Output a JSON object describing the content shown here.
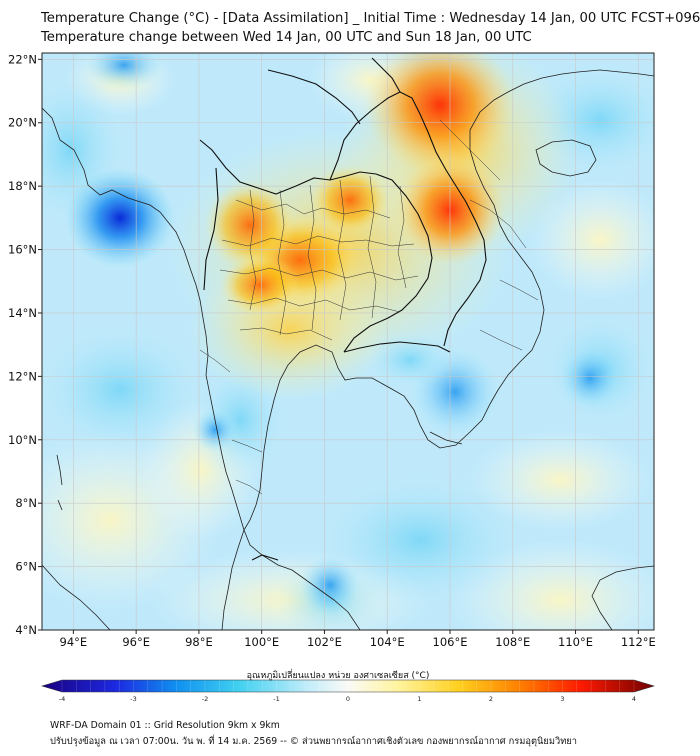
{
  "title": {
    "line1": "Temperature Change (°C) - [Data Assimilation] _ Initial Time : Wednesday 14 Jan, 00 UTC FCST+096",
    "line2": "Temperature change between Wed 14 Jan, 00 UTC and Sun 18 Jan, 00 UTC"
  },
  "map": {
    "lon_labels": [
      "94°E",
      "96°E",
      "98°E",
      "100°E",
      "102°E",
      "104°E",
      "106°E",
      "108°E",
      "110°E",
      "112°E"
    ],
    "lat_labels": [
      "22°N",
      "20°N",
      "18°N",
      "16°N",
      "14°N",
      "12°N",
      "10°N",
      "8°N",
      "6°N",
      "4°N"
    ],
    "lon_range": [
      93,
      112.5
    ],
    "lat_range": [
      4,
      22.2
    ],
    "hot_spots": [
      {
        "lon": 105.8,
        "lat": 20.5,
        "value": 3.1
      },
      {
        "lon": 106.2,
        "lat": 17.0,
        "value": 3.0
      },
      {
        "lon": 101.0,
        "lat": 15.6,
        "value": 2.6
      },
      {
        "lon": 99.6,
        "lat": 16.6,
        "value": 2.5
      },
      {
        "lon": 100.0,
        "lat": 14.7,
        "value": 2.2
      }
    ],
    "cold_spots": [
      {
        "lon": 95.5,
        "lat": 17.0,
        "value": -3.3
      },
      {
        "lon": 105.2,
        "lat": 11.5,
        "value": -2.4
      },
      {
        "lon": 95.8,
        "lat": 21.6,
        "value": -2.0
      },
      {
        "lon": 109.5,
        "lat": 11.6,
        "value": -1.2
      }
    ]
  },
  "colorbar": {
    "label": "อุณหภูมิเปลี่ยนแปลง หน่วย องศาเซลเซียส (°C)",
    "ticks": [
      "-4",
      "-3",
      "-2",
      "-1",
      "0",
      "1",
      "2",
      "3",
      "4"
    ],
    "range": [
      -4,
      4
    ],
    "colors": [
      "#1a0080",
      "#2040ff",
      "#28c8f0",
      "#e8f8ff",
      "#fff3a0",
      "#ffb000",
      "#ff2000",
      "#800000"
    ]
  },
  "footer": {
    "line1": "WRF-DA Domain 01 :: Grid Resolution 9km x 9km",
    "line2": "ปรับปรุงข้อมูล ณ เวลา 07:00น. วัน พ. ที่ 14 ม.ค. 2569 -- © ส่วนพยากรณ์อากาศเชิงตัวเลข กองพยากรณ์อากาศ กรมอุตุนิยมวิทยา"
  }
}
